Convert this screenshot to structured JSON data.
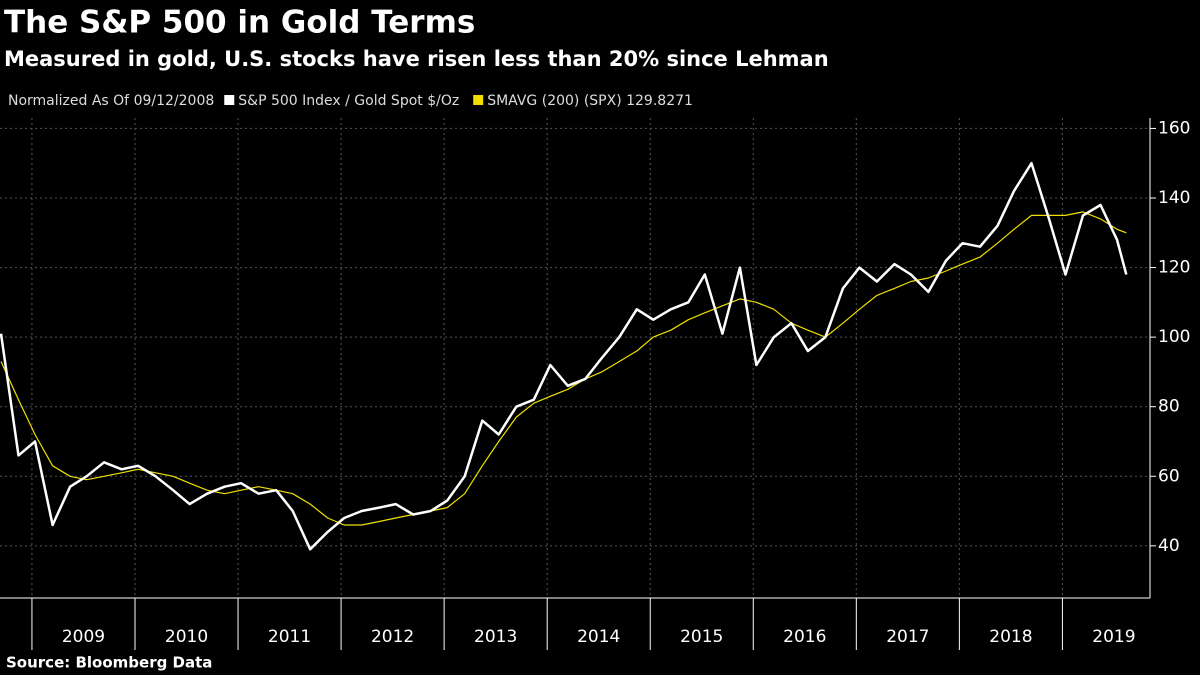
{
  "chart_data": {
    "type": "line",
    "title": "The S&P 500 in Gold Terms",
    "subtitle": "Measured in gold, U.S. stocks have risen less than 20% since Lehman",
    "legend_note": "Normalized As Of 09/12/2008",
    "source": "Source: Bloomberg Data",
    "x": [
      2008.7,
      2008.87,
      2009.03,
      2009.2,
      2009.37,
      2009.53,
      2009.7,
      2009.87,
      2010.03,
      2010.2,
      2010.37,
      2010.53,
      2010.7,
      2010.87,
      2011.03,
      2011.2,
      2011.37,
      2011.53,
      2011.7,
      2011.87,
      2012.03,
      2012.2,
      2012.37,
      2012.53,
      2012.7,
      2012.87,
      2013.03,
      2013.2,
      2013.37,
      2013.53,
      2013.7,
      2013.87,
      2014.03,
      2014.2,
      2014.37,
      2014.53,
      2014.7,
      2014.87,
      2015.03,
      2015.2,
      2015.37,
      2015.53,
      2015.7,
      2015.87,
      2016.03,
      2016.2,
      2016.37,
      2016.53,
      2016.7,
      2016.87,
      2017.03,
      2017.2,
      2017.37,
      2017.53,
      2017.7,
      2017.87,
      2018.03,
      2018.2,
      2018.37,
      2018.53,
      2018.7,
      2018.87,
      2019.03,
      2019.2,
      2019.37,
      2019.53,
      2019.62
    ],
    "series": [
      {
        "name": "S&P 500 Index / Gold Spot $/Oz",
        "color": "#ffffff",
        "values": [
          101,
          66,
          70,
          46,
          57,
          60,
          64,
          62,
          63,
          60,
          56,
          52,
          55,
          57,
          58,
          55,
          56,
          50,
          39,
          44,
          48,
          50,
          51,
          52,
          49,
          50,
          53,
          60,
          76,
          72,
          80,
          82,
          92,
          86,
          88,
          94,
          100,
          108,
          105,
          108,
          110,
          118,
          101,
          120,
          92,
          100,
          104,
          96,
          100,
          114,
          120,
          116,
          121,
          118,
          113,
          122,
          127,
          126,
          132,
          142,
          150,
          134,
          118,
          135,
          138,
          128,
          118
        ]
      },
      {
        "name": "SMAVG (200) (SPX) 129.8271",
        "color": "#f0e000",
        "values": [
          93,
          82,
          72,
          63,
          60,
          59,
          60,
          61,
          62,
          61,
          60,
          58,
          56,
          55,
          56,
          57,
          56,
          55,
          52,
          48,
          46,
          46,
          47,
          48,
          49,
          50,
          51,
          55,
          63,
          70,
          77,
          81,
          83,
          85,
          88,
          90,
          93,
          96,
          100,
          102,
          105,
          107,
          109,
          111,
          110,
          108,
          104,
          102,
          100,
          104,
          108,
          112,
          114,
          116,
          117,
          119,
          121,
          123,
          127,
          131,
          135,
          135,
          135,
          136,
          134,
          131,
          130
        ]
      }
    ],
    "xlim": [
      2008.69,
      2019.85
    ],
    "xticks": [
      {
        "value": 2009,
        "label": "2009"
      },
      {
        "value": 2010,
        "label": "2010"
      },
      {
        "value": 2011,
        "label": "2011"
      },
      {
        "value": 2012,
        "label": "2012"
      },
      {
        "value": 2013,
        "label": "2013"
      },
      {
        "value": 2014,
        "label": "2014"
      },
      {
        "value": 2015,
        "label": "2015"
      },
      {
        "value": 2016,
        "label": "2016"
      },
      {
        "value": 2017,
        "label": "2017"
      },
      {
        "value": 2018,
        "label": "2018"
      },
      {
        "value": 2019,
        "label": "2019"
      }
    ],
    "ylim": [
      25,
      163
    ],
    "yticks": [
      40,
      60,
      80,
      100,
      120,
      140,
      160
    ],
    "grid": true
  }
}
